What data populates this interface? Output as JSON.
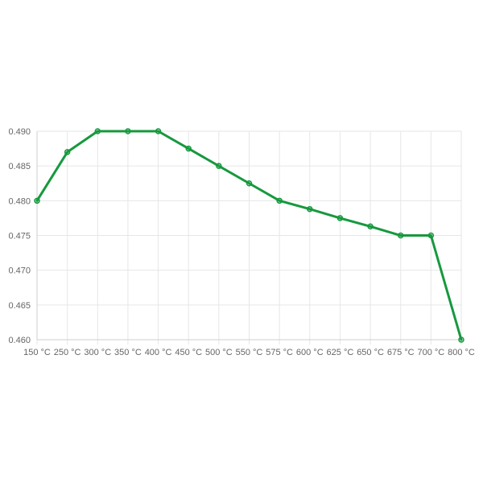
{
  "chart_data": {
    "type": "line",
    "title": "",
    "xlabel": "",
    "ylabel": "",
    "categories": [
      "150 °C",
      "250 °C",
      "300 °C",
      "350 °C",
      "400 °C",
      "450 °C",
      "500 °C",
      "550 °C",
      "575 °C",
      "600 °C",
      "625 °C",
      "650 °C",
      "675 °C",
      "700 °C",
      "800 °C"
    ],
    "series": [
      {
        "values": [
          0.48,
          0.487,
          0.49,
          0.49,
          0.49,
          0.4875,
          0.485,
          0.4825,
          0.48,
          0.4788,
          0.4775,
          0.4763,
          0.475,
          0.475,
          0.46
        ]
      }
    ],
    "ylim": [
      0.46,
      0.49
    ],
    "yticks": [
      "0.490",
      "0.485",
      "0.480",
      "0.475",
      "0.470",
      "0.465",
      "0.460"
    ],
    "grid": true,
    "legend": "none",
    "color": "#16993e"
  }
}
